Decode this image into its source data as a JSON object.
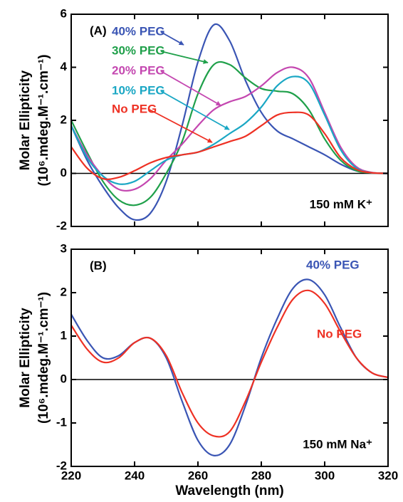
{
  "chart_data": [
    {
      "type": "line",
      "title": "(A)",
      "annotation": "150 mM K⁺",
      "ylabel": [
        "Molar Ellipticity",
        "(10⁶.mdeg.M⁻¹.cm⁻¹)"
      ],
      "x": [
        220,
        225,
        230,
        235,
        240,
        245,
        250,
        255,
        260,
        265,
        270,
        275,
        280,
        285,
        290,
        295,
        300,
        305,
        310,
        315,
        320
      ],
      "xlim": [
        220,
        320
      ],
      "xticks": [
        220,
        240,
        260,
        280,
        300,
        320
      ],
      "ylim": [
        -2,
        6
      ],
      "yticks": [
        -2,
        0,
        2,
        4,
        6
      ],
      "series": [
        {
          "name": "40% PEG",
          "color": "#3a55b4",
          "values": [
            1.8,
            0.5,
            -0.5,
            -1.3,
            -1.75,
            -1.5,
            -0.3,
            1.8,
            4.2,
            5.6,
            5.0,
            3.5,
            2.3,
            1.6,
            1.3,
            1.0,
            0.7,
            0.35,
            0.1,
            0.02,
            0
          ]
        },
        {
          "name": "30% PEG",
          "color": "#1fa04a",
          "values": [
            2.0,
            0.8,
            -0.3,
            -1.0,
            -1.2,
            -0.9,
            0.0,
            1.2,
            3.0,
            4.1,
            4.1,
            3.6,
            3.2,
            3.1,
            3.0,
            2.4,
            1.3,
            0.5,
            0.1,
            0.02,
            0
          ]
        },
        {
          "name": "20% PEG",
          "color": "#c447b0",
          "values": [
            1.8,
            0.7,
            -0.1,
            -0.6,
            -0.6,
            -0.2,
            0.5,
            1.1,
            1.8,
            2.4,
            2.7,
            2.9,
            3.3,
            3.8,
            4.0,
            3.6,
            2.3,
            1.0,
            0.25,
            0.03,
            0
          ]
        },
        {
          "name": "10% PEG",
          "color": "#1aa7c4",
          "values": [
            1.8,
            0.6,
            -0.1,
            -0.4,
            -0.3,
            0.1,
            0.5,
            0.7,
            0.8,
            1.1,
            1.5,
            1.9,
            2.5,
            3.3,
            3.65,
            3.4,
            2.2,
            0.9,
            0.2,
            0.02,
            0
          ]
        },
        {
          "name": "No PEG",
          "color": "#ee3124",
          "values": [
            1.0,
            0.2,
            -0.2,
            -0.15,
            0.1,
            0.4,
            0.6,
            0.7,
            0.8,
            1.0,
            1.2,
            1.4,
            1.8,
            2.2,
            2.3,
            2.2,
            1.5,
            0.6,
            0.15,
            0.02,
            0
          ]
        }
      ]
    },
    {
      "type": "line",
      "title": "(B)",
      "annotation": "150 mM Na⁺",
      "ylabel": [
        "Molar Ellipticity",
        "(10⁶.mdeg.M⁻¹.cm⁻¹)"
      ],
      "xlabel": "Wavelength (nm)",
      "x": [
        220,
        225,
        230,
        235,
        240,
        245,
        250,
        255,
        260,
        265,
        270,
        275,
        280,
        285,
        290,
        295,
        300,
        305,
        310,
        315,
        320
      ],
      "xlim": [
        220,
        320
      ],
      "xticks": [
        220,
        240,
        260,
        280,
        300,
        320
      ],
      "ylim": [
        -2,
        3
      ],
      "yticks": [
        -2,
        -1,
        0,
        1,
        2,
        3
      ],
      "series": [
        {
          "name": "40% PEG",
          "color": "#3a55b4",
          "values": [
            1.5,
            0.9,
            0.5,
            0.55,
            0.85,
            0.95,
            0.5,
            -0.5,
            -1.4,
            -1.75,
            -1.5,
            -0.6,
            0.5,
            1.4,
            2.1,
            2.3,
            1.95,
            1.2,
            0.5,
            0.15,
            0.05
          ]
        },
        {
          "name": "No PEG",
          "color": "#ee3124",
          "values": [
            1.25,
            0.7,
            0.4,
            0.5,
            0.85,
            0.95,
            0.55,
            -0.3,
            -1.0,
            -1.3,
            -1.2,
            -0.5,
            0.4,
            1.2,
            1.85,
            2.05,
            1.75,
            1.1,
            0.5,
            0.15,
            0.05
          ]
        }
      ]
    }
  ]
}
